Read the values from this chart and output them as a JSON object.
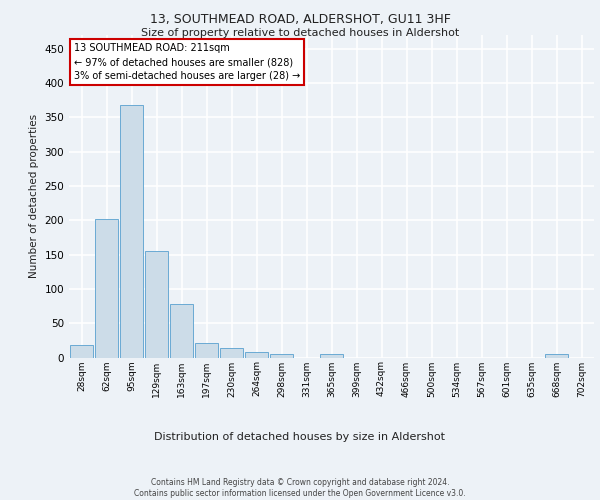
{
  "title": "13, SOUTHMEAD ROAD, ALDERSHOT, GU11 3HF",
  "subtitle": "Size of property relative to detached houses in Aldershot",
  "xlabel": "Distribution of detached houses by size in Aldershot",
  "ylabel": "Number of detached properties",
  "bin_labels": [
    "28sqm",
    "62sqm",
    "95sqm",
    "129sqm",
    "163sqm",
    "197sqm",
    "230sqm",
    "264sqm",
    "298sqm",
    "331sqm",
    "365sqm",
    "399sqm",
    "432sqm",
    "466sqm",
    "500sqm",
    "534sqm",
    "567sqm",
    "601sqm",
    "635sqm",
    "668sqm",
    "702sqm"
  ],
  "bar_values": [
    18,
    202,
    368,
    155,
    78,
    21,
    14,
    8,
    5,
    0,
    5,
    0,
    0,
    0,
    0,
    0,
    0,
    0,
    0,
    5,
    0
  ],
  "bar_color": "#ccdce8",
  "bar_edge_color": "#6aaad4",
  "annotation_box_text": "13 SOUTHMEAD ROAD: 211sqm\n← 97% of detached houses are smaller (828)\n3% of semi-detached houses are larger (28) →",
  "annotation_box_color": "#cc0000",
  "annotation_box_fill": "#ffffff",
  "ylim": [
    0,
    470
  ],
  "yticks": [
    0,
    50,
    100,
    150,
    200,
    250,
    300,
    350,
    400,
    450
  ],
  "footer_text": "Contains HM Land Registry data © Crown copyright and database right 2024.\nContains public sector information licensed under the Open Government Licence v3.0.",
  "background_color": "#edf2f7",
  "grid_color": "#ffffff"
}
